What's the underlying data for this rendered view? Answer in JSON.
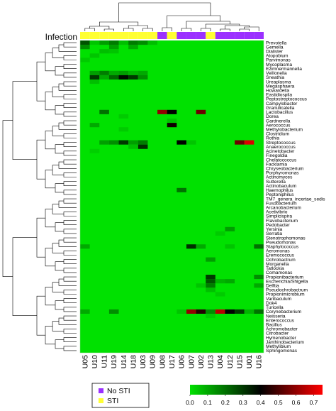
{
  "chart_data": {
    "type": "heatmap",
    "annotation_label": "Infection",
    "columns": [
      "U05",
      "U10",
      "U11",
      "U19",
      "U14",
      "U18",
      "U03",
      "U09",
      "U08",
      "U17",
      "U06",
      "U07",
      "U02",
      "U13",
      "U04",
      "U12",
      "U15",
      "U01",
      "U16"
    ],
    "column_groups": [
      "STI",
      "STI",
      "STI",
      "STI",
      "STI",
      "STI",
      "STI",
      "STI",
      "No STI",
      "STI",
      "No STI",
      "No STI",
      "No STI",
      "STI",
      "No STI",
      "No STI",
      "No STI",
      "No STI",
      "No STI"
    ],
    "legend": [
      {
        "label": "No STI",
        "color": "#9b30ff"
      },
      {
        "label": "STI",
        "color": "#ffff33"
      }
    ],
    "rows": [
      "Prevotella",
      "Gemella",
      "Dialister",
      "Atopobium",
      "Parvimonas",
      "Mycoplasma",
      "Ezimnermannella",
      "Veillonella",
      "Sneathia",
      "Ureaplasma",
      "Megasphaera",
      "Howardella",
      "Eastidiospila",
      "Peptostreptococcus",
      "Campylobacter",
      "Granulicatella",
      "Lactobacillus",
      "Dorea",
      "Gardnerella",
      "Aerococcus",
      "Methylobacterium",
      "Clostridium",
      "Rothia",
      "Streptococcus",
      "Anaerococcus",
      "Acinetobacter",
      "Finegoldia",
      "Chelatococcus",
      "Facklamia",
      "Chryseobacterium",
      "Porphyromonas",
      "Actinomyces",
      "Sutterella",
      "Actinobaculum",
      "Haemophilus",
      "Peptoniphilus",
      "TM7_genera_incertae_sedis",
      "Fusobacterium",
      "Arcanobacterium",
      "Acetivibrio",
      "Simplicispira",
      "Flavobacterium",
      "Pedobacter",
      "Yersinia",
      "Serratia",
      "Stenotrophomonas",
      "Pseudomonas",
      "Staphylococcus",
      "Aeromonas",
      "Eremococcus",
      "Ochrobactrum",
      "Morganella",
      "Tatlockia",
      "Comamonas",
      "Propionibacterium",
      "Escherichia/Shigella",
      "Delftia",
      "Pseudochrobactrum",
      "Propionimicrobium",
      "Varibaculum",
      "Dok4",
      "Turicella",
      "Corynebacterium",
      "Neisseria",
      "Enterococcus",
      "Bacillus",
      "Achromobacter",
      "Citrobacter",
      "Hymenobacter",
      "Janthinobacterium",
      "Methylibium",
      "Sphingomonas"
    ],
    "color_scale": {
      "colors": [
        "#00e100",
        "#000000",
        "#ff0000"
      ],
      "ticks": [
        0.0,
        0.1,
        0.2,
        0.3,
        0.4,
        0.5,
        0.6,
        0.7
      ],
      "range": [
        0,
        0.75
      ]
    },
    "cells": [
      {
        "row": "Prevotella",
        "col": "U05",
        "v": 0.25
      },
      {
        "row": "Prevotella",
        "col": "U10",
        "v": 0.05
      },
      {
        "row": "Prevotella",
        "col": "U11",
        "v": 0.12
      },
      {
        "row": "Prevotella",
        "col": "U19",
        "v": 0.18
      },
      {
        "row": "Prevotella",
        "col": "U14",
        "v": 0.06
      },
      {
        "row": "Prevotella",
        "col": "U18",
        "v": 0.18
      },
      {
        "row": "Prevotella",
        "col": "U03",
        "v": 0.15
      },
      {
        "row": "Prevotella",
        "col": "U09",
        "v": 0.06
      },
      {
        "row": "Gemella",
        "col": "U05",
        "v": 0.15
      },
      {
        "row": "Gemella",
        "col": "U19",
        "v": 0.12
      },
      {
        "row": "Gemella",
        "col": "U18",
        "v": 0.1
      },
      {
        "row": "Dialister",
        "col": "U11",
        "v": 0.06
      },
      {
        "row": "Dialister",
        "col": "U19",
        "v": 0.05
      },
      {
        "row": "Atopobium",
        "col": "U10",
        "v": 0.05
      },
      {
        "row": "Parvimonas",
        "col": "U05",
        "v": 0.04
      },
      {
        "row": "Veillonella",
        "col": "U10",
        "v": 0.12
      },
      {
        "row": "Veillonella",
        "col": "U11",
        "v": 0.18
      },
      {
        "row": "Veillonella",
        "col": "U19",
        "v": 0.1
      },
      {
        "row": "Veillonella",
        "col": "U14",
        "v": 0.12
      },
      {
        "row": "Veillonella",
        "col": "U18",
        "v": 0.08
      },
      {
        "row": "Veillonella",
        "col": "U03",
        "v": 0.1
      },
      {
        "row": "Sneathia",
        "col": "U10",
        "v": 0.3
      },
      {
        "row": "Sneathia",
        "col": "U11",
        "v": 0.1
      },
      {
        "row": "Sneathia",
        "col": "U19",
        "v": 0.22
      },
      {
        "row": "Sneathia",
        "col": "U14",
        "v": 0.38
      },
      {
        "row": "Sneathia",
        "col": "U18",
        "v": 0.3
      },
      {
        "row": "Sneathia",
        "col": "U03",
        "v": 0.15
      },
      {
        "row": "Ureaplasma",
        "col": "U10",
        "v": 0.06
      },
      {
        "row": "Lactobacillus",
        "col": "U08",
        "v": 0.6
      },
      {
        "row": "Lactobacillus",
        "col": "U17",
        "v": 0.4
      },
      {
        "row": "Lactobacillus",
        "col": "U02",
        "v": 0.55
      },
      {
        "row": "Lactobacillus",
        "col": "U11",
        "v": 0.2
      },
      {
        "row": "Dorea",
        "col": "U14",
        "v": 0.04
      },
      {
        "row": "Gardnerella",
        "col": "U17",
        "v": 0.05
      },
      {
        "row": "Aerococcus",
        "col": "U17",
        "v": 0.42
      },
      {
        "row": "Aerococcus",
        "col": "U10",
        "v": 0.1
      },
      {
        "row": "Methylobacterium",
        "col": "U14",
        "v": 0.04
      },
      {
        "row": "Streptococcus",
        "col": "U11",
        "v": 0.12
      },
      {
        "row": "Streptococcus",
        "col": "U19",
        "v": 0.15
      },
      {
        "row": "Streptococcus",
        "col": "U14",
        "v": 0.3
      },
      {
        "row": "Streptococcus",
        "col": "U18",
        "v": 0.12
      },
      {
        "row": "Streptococcus",
        "col": "U03",
        "v": 0.18
      },
      {
        "row": "Streptococcus",
        "col": "U06",
        "v": 0.4
      },
      {
        "row": "Streptococcus",
        "col": "U15",
        "v": 0.55
      },
      {
        "row": "Streptococcus",
        "col": "U01",
        "v": 0.7
      },
      {
        "row": "Streptococcus",
        "col": "U07",
        "v": 0.05
      },
      {
        "row": "Anaerococcus",
        "col": "U03",
        "v": 0.32
      },
      {
        "row": "Anaerococcus",
        "col": "U18",
        "v": 0.06
      },
      {
        "row": "Acinetobacter",
        "col": "U10",
        "v": 0.03
      },
      {
        "row": "Haemophilus",
        "col": "U06",
        "v": 0.2
      },
      {
        "row": "Yersinia",
        "col": "U12",
        "v": 0.12
      },
      {
        "row": "Serratia",
        "col": "U04",
        "v": 0.04
      },
      {
        "row": "Staphylococcus",
        "col": "U05",
        "v": 0.1
      },
      {
        "row": "Staphylococcus",
        "col": "U07",
        "v": 0.32
      },
      {
        "row": "Staphylococcus",
        "col": "U02",
        "v": 0.1
      },
      {
        "row": "Staphylococcus",
        "col": "U16",
        "v": 0.2
      },
      {
        "row": "Staphylococcus",
        "col": "U12",
        "v": 0.05
      },
      {
        "row": "Ochrobactrum",
        "col": "U13",
        "v": 0.12
      },
      {
        "row": "Propionibacterium",
        "col": "U13",
        "v": 0.3
      },
      {
        "row": "Propionibacterium",
        "col": "U16",
        "v": 0.15
      },
      {
        "row": "Escherichia/Shigella",
        "col": "U13",
        "v": 0.25
      },
      {
        "row": "Escherichia/Shigella",
        "col": "U04",
        "v": 0.08
      },
      {
        "row": "Escherichia/Shigella",
        "col": "U12",
        "v": 0.1
      },
      {
        "row": "Delftia",
        "col": "U13",
        "v": 0.18
      },
      {
        "row": "Delftia",
        "col": "U16",
        "v": 0.1
      },
      {
        "row": "Delftia",
        "col": "U02",
        "v": 0.05
      },
      {
        "row": "Pseudochrobactrum",
        "col": "U13",
        "v": 0.06
      },
      {
        "row": "Propionimicrobium",
        "col": "U04",
        "v": 0.04
      },
      {
        "row": "Corynebacterium",
        "col": "U05",
        "v": 0.1
      },
      {
        "row": "Corynebacterium",
        "col": "U19",
        "v": 0.15
      },
      {
        "row": "Corynebacterium",
        "col": "U07",
        "v": 0.6
      },
      {
        "row": "Corynebacterium",
        "col": "U02",
        "v": 0.45
      },
      {
        "row": "Corynebacterium",
        "col": "U13",
        "v": 0.15
      },
      {
        "row": "Corynebacterium",
        "col": "U04",
        "v": 0.65
      },
      {
        "row": "Corynebacterium",
        "col": "U12",
        "v": 0.4
      },
      {
        "row": "Corynebacterium",
        "col": "U15",
        "v": 0.3
      },
      {
        "row": "Corynebacterium",
        "col": "U01",
        "v": 0.08
      },
      {
        "row": "Corynebacterium",
        "col": "U16",
        "v": 0.2
      },
      {
        "row": "Corynebacterium",
        "col": "U06",
        "v": 0.05
      },
      {
        "row": "Neisseria",
        "col": "U13",
        "v": 0.04
      }
    ]
  }
}
